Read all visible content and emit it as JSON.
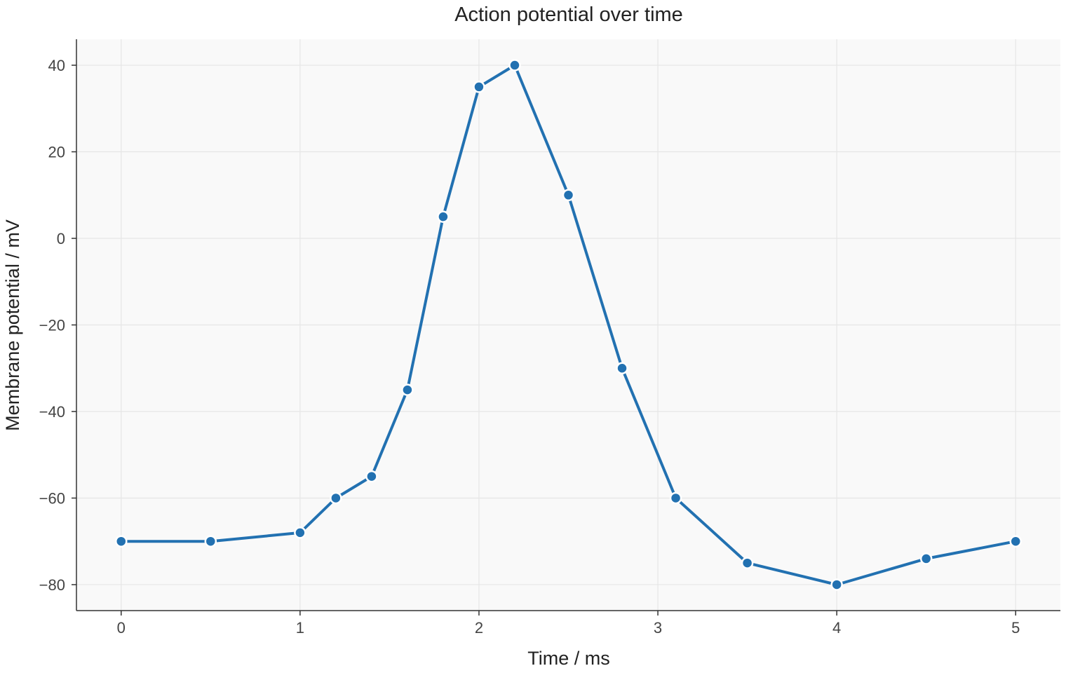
{
  "chart_data": {
    "type": "line",
    "title": "Action potential over time",
    "xlabel": "Time / ms",
    "ylabel": "Membrane potential / mV",
    "xlim": [
      -0.25,
      5.25
    ],
    "ylim": [
      -86,
      46
    ],
    "xticks": [
      0,
      1,
      2,
      3,
      4,
      5
    ],
    "yticks": [
      -80,
      -60,
      -40,
      -20,
      0,
      20,
      40
    ],
    "ytick_labels": [
      "−80",
      "−60",
      "−40",
      "−20",
      "0",
      "20",
      "40"
    ],
    "grid": true,
    "colors": {
      "series": "#2271b1",
      "plot_background": "#f9f9f9"
    },
    "series": [
      {
        "x": [
          0,
          0.5,
          1.0,
          1.2,
          1.4,
          1.6,
          1.8,
          2.0,
          2.2,
          2.5,
          2.8,
          3.1,
          3.5,
          4.0,
          4.5,
          5.0
        ],
        "y": [
          -70,
          -70,
          -68,
          -60,
          -55,
          -35,
          5,
          35,
          40,
          10,
          -30,
          -60,
          -75,
          -80,
          -74,
          -70
        ]
      }
    ]
  }
}
